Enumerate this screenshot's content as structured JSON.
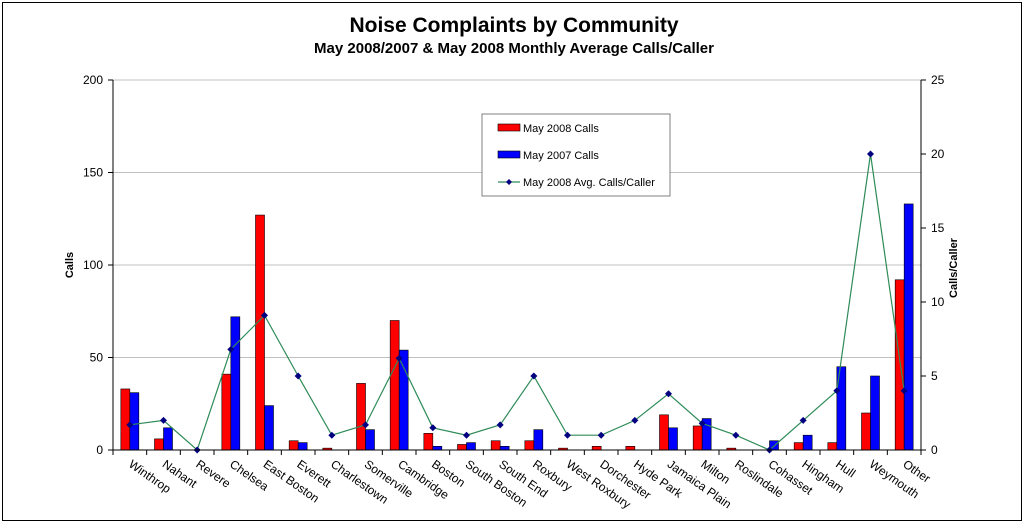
{
  "chart_data": {
    "type": "bar",
    "title": "Noise Complaints by Community",
    "subtitle": "May 2008/2007 & May 2008 Monthly Average Calls/Caller",
    "ylabel": "Calls",
    "y2label": "Calls/Caller",
    "ylim": [
      0,
      200
    ],
    "yticks": [
      0,
      50,
      100,
      150,
      200
    ],
    "y2lim": [
      0,
      25
    ],
    "y2ticks": [
      0,
      5,
      10,
      15,
      20,
      25
    ],
    "grid": true,
    "legend_position": "top-center",
    "categories": [
      "Winthrop",
      "Nahant",
      "Revere",
      "Chelsea",
      "East Boston",
      "Everett",
      "Charlestown",
      "Somerville",
      "Cambridge",
      "Boston",
      "South Boston",
      "South End",
      "Roxbury",
      "West Roxbury",
      "Dorchester",
      "Hyde Park",
      "Jamaica Plain",
      "Milton",
      "Roslindale",
      "Cohasset",
      "Hingham",
      "Hull",
      "Weymouth",
      "Other"
    ],
    "series": [
      {
        "name": "May 2008 Calls",
        "type": "bar",
        "axis": "left",
        "color": "#ff0000",
        "values": [
          33,
          6,
          0,
          41,
          127,
          5,
          1,
          36,
          70,
          9,
          3,
          5,
          5,
          1,
          2,
          2,
          19,
          13,
          1,
          0,
          4,
          4,
          20,
          92
        ]
      },
      {
        "name": "May 2007 Calls",
        "type": "bar",
        "axis": "left",
        "color": "#0000ff",
        "values": [
          31,
          12,
          0,
          72,
          24,
          4,
          0,
          11,
          54,
          2,
          4,
          2,
          11,
          0,
          0,
          0,
          12,
          17,
          0,
          5,
          8,
          45,
          40,
          133
        ]
      },
      {
        "name": "May 2008 Avg. Calls/Caller",
        "type": "line",
        "axis": "right",
        "color": "#2e8b57",
        "marker_color": "#000080",
        "values": [
          1.7,
          2.0,
          0.0,
          6.8,
          9.1,
          5.0,
          1.0,
          1.7,
          6.2,
          1.5,
          1.0,
          1.7,
          5.0,
          1.0,
          1.0,
          2.0,
          3.8,
          1.8,
          1.0,
          0.0,
          2.0,
          4.0,
          20.0,
          4.0
        ]
      }
    ]
  }
}
